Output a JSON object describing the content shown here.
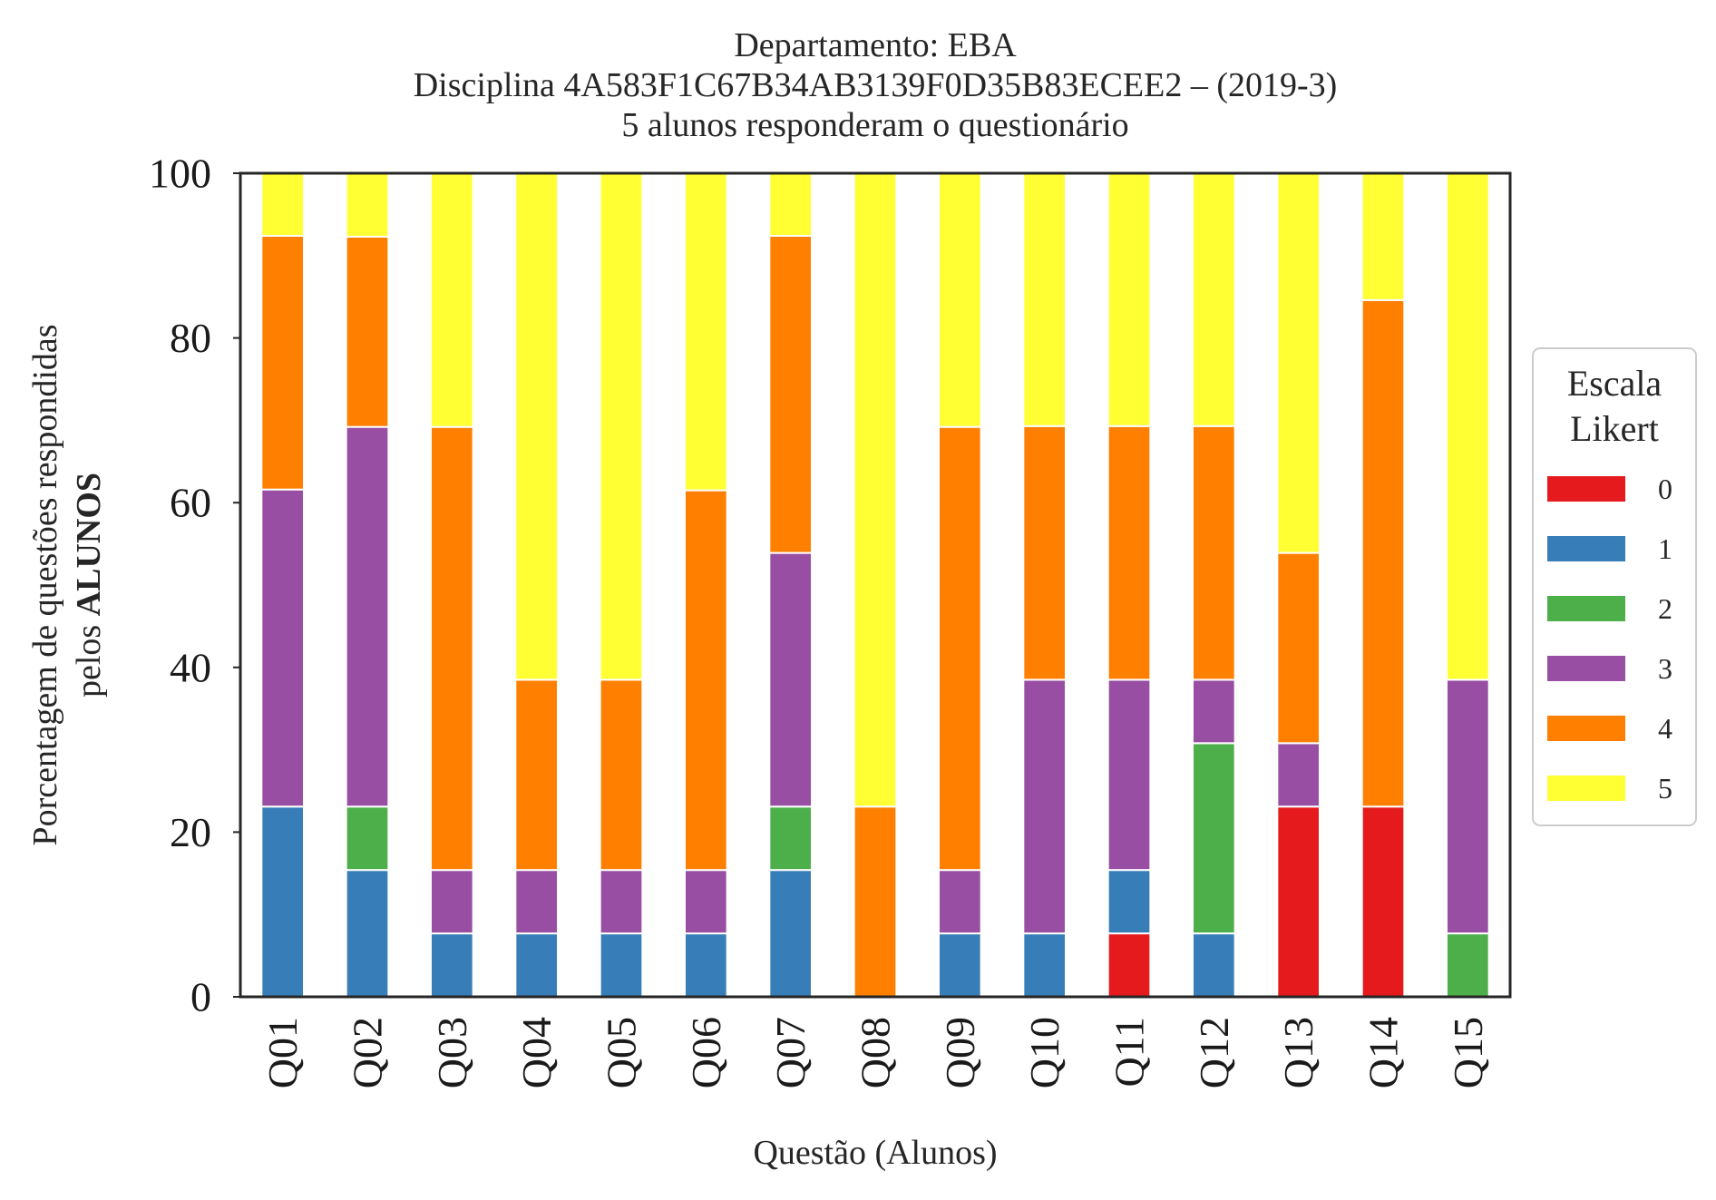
{
  "chart_data": {
    "type": "bar",
    "stacked": true,
    "title_lines": [
      "Departamento: EBA",
      "Disciplina 4A583F1C67B34AB3139F0D35B83ECEE2 – (2019-3)",
      "5 alunos responderam o questionário"
    ],
    "xlabel": "Questão (Alunos)",
    "ylabel_line1": "Porcentagem de questões respondidas",
    "ylabel_line2_prefix": "pelos ",
    "ylabel_line2_bold": "ALUNOS",
    "ylim": [
      0,
      100
    ],
    "yticks": [
      "0",
      "20",
      "40",
      "60",
      "80",
      "100"
    ],
    "categories": [
      "Q01",
      "Q02",
      "Q03",
      "Q04",
      "Q05",
      "Q06",
      "Q07",
      "Q08",
      "Q09",
      "Q10",
      "Q11",
      "Q12",
      "Q13",
      "Q14",
      "Q15"
    ],
    "legend_title_lines": [
      "Escala",
      "Likert"
    ],
    "legend_placement": "center-right-outside",
    "grid": false,
    "series": [
      {
        "name": "0",
        "color": "#e41a1c",
        "values": [
          0,
          0,
          0,
          0,
          0,
          0,
          0,
          0,
          0,
          0,
          7.7,
          0,
          23.1,
          23.1,
          0
        ]
      },
      {
        "name": "1",
        "color": "#377eb8",
        "values": [
          23.1,
          15.4,
          7.7,
          7.7,
          7.7,
          7.7,
          15.4,
          0,
          7.7,
          7.7,
          7.7,
          7.7,
          0,
          0,
          0
        ]
      },
      {
        "name": "2",
        "color": "#4daf4a",
        "values": [
          0,
          7.7,
          0,
          0,
          0,
          0,
          7.7,
          0,
          0,
          0,
          0,
          23.1,
          0,
          0,
          7.7
        ]
      },
      {
        "name": "3",
        "color": "#984ea3",
        "values": [
          38.5,
          46.1,
          7.7,
          7.7,
          7.7,
          7.7,
          30.8,
          0,
          7.7,
          30.8,
          23.1,
          7.7,
          7.7,
          0,
          30.8
        ]
      },
      {
        "name": "4",
        "color": "#ff7f00",
        "values": [
          30.8,
          23.1,
          53.8,
          23.1,
          23.1,
          46.1,
          38.5,
          23.1,
          53.8,
          30.8,
          30.8,
          30.8,
          23.1,
          61.5,
          0
        ]
      },
      {
        "name": "5",
        "color": "#ffff33",
        "values": [
          7.6,
          7.7,
          30.8,
          61.5,
          61.5,
          38.5,
          7.6,
          76.9,
          30.8,
          30.7,
          30.7,
          30.7,
          46.1,
          15.4,
          61.5
        ]
      }
    ]
  }
}
